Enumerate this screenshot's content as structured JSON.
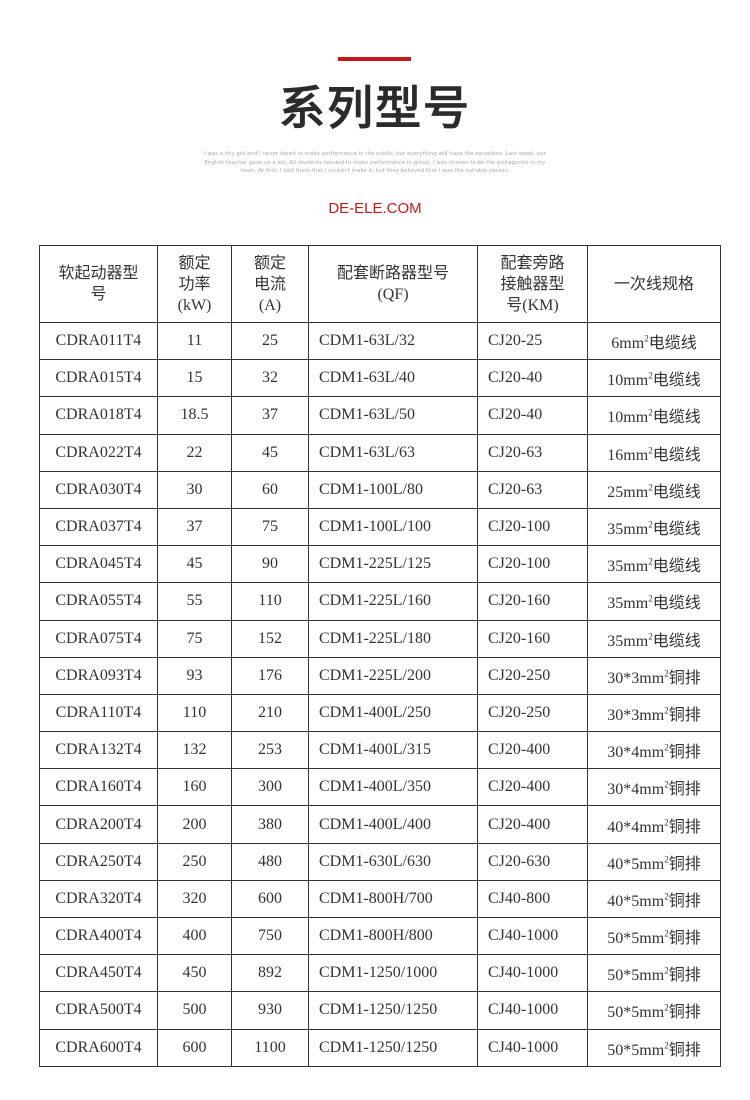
{
  "header": {
    "title": "系列型号",
    "blurb": "I was a shy girl and I never dared to make performance in the public, but everything will have the exception. Last week, our English teacher gave us a job. All students needed to make performance in group. I was chosen to be the protagonist in my team. At first, I told them that I couldn't make it, but they believed that I was the suitable person.",
    "site": "DE-ELE.COM",
    "accent": "#c8161d"
  },
  "table": {
    "columns": [
      "软起动器型号",
      "额定功率(kW)",
      "额定电流(A)",
      "配套断路器型号(QF)",
      "配套旁路接触器型号(KM)",
      "一次线规格"
    ],
    "rows": [
      [
        "CDRA011T4",
        "11",
        "25",
        "CDM1-63L/32",
        "CJ20-25",
        "6mm",
        "电缆线"
      ],
      [
        "CDRA015T4",
        "15",
        "32",
        "CDM1-63L/40",
        "CJ20-40",
        "10mm",
        "电缆线"
      ],
      [
        "CDRA018T4",
        "18.5",
        "37",
        "CDM1-63L/50",
        "CJ20-40",
        "10mm",
        "电缆线"
      ],
      [
        "CDRA022T4",
        "22",
        "45",
        "CDM1-63L/63",
        "CJ20-63",
        "16mm",
        "电缆线"
      ],
      [
        "CDRA030T4",
        "30",
        "60",
        "CDM1-100L/80",
        "CJ20-63",
        "25mm",
        "电缆线"
      ],
      [
        "CDRA037T4",
        "37",
        "75",
        "CDM1-100L/100",
        "CJ20-100",
        "35mm",
        "电缆线"
      ],
      [
        "CDRA045T4",
        "45",
        "90",
        "CDM1-225L/125",
        "CJ20-100",
        "35mm",
        "电缆线"
      ],
      [
        "CDRA055T4",
        "55",
        "110",
        "CDM1-225L/160",
        "CJ20-160",
        "35mm",
        "电缆线"
      ],
      [
        "CDRA075T4",
        "75",
        "152",
        "CDM1-225L/180",
        "CJ20-160",
        "35mm",
        "电缆线"
      ],
      [
        "CDRA093T4",
        "93",
        "176",
        "CDM1-225L/200",
        "CJ20-250",
        "30*3mm",
        "铜排"
      ],
      [
        "CDRA110T4",
        "110",
        "210",
        "CDM1-400L/250",
        "CJ20-250",
        "30*3mm",
        "铜排"
      ],
      [
        "CDRA132T4",
        "132",
        "253",
        "CDM1-400L/315",
        "CJ20-400",
        "30*4mm",
        "铜排"
      ],
      [
        "CDRA160T4",
        "160",
        "300",
        "CDM1-400L/350",
        "CJ20-400",
        "30*4mm",
        "铜排"
      ],
      [
        "CDRA200T4",
        "200",
        "380",
        "CDM1-400L/400",
        "CJ20-400",
        "40*4mm",
        "铜排"
      ],
      [
        "CDRA250T4",
        "250",
        "480",
        "CDM1-630L/630",
        "CJ20-630",
        "40*5mm",
        "铜排"
      ],
      [
        "CDRA320T4",
        "320",
        "600",
        "CDM1-800H/700",
        "CJ40-800",
        "40*5mm",
        "铜排"
      ],
      [
        "CDRA400T4",
        "400",
        "750",
        "CDM1-800H/800",
        "CJ40-1000",
        "50*5mm",
        "铜排"
      ],
      [
        "CDRA450T4",
        "450",
        "892",
        "CDM1-1250/1000",
        "CJ40-1000",
        "50*5mm",
        "铜排"
      ],
      [
        "CDRA500T4",
        "500",
        "930",
        "CDM1-1250/1250",
        "CJ40-1000",
        "50*5mm",
        "铜排"
      ],
      [
        "CDRA600T4",
        "600",
        "1100",
        "CDM1-1250/1250",
        "CJ40-1000",
        "50*5mm",
        "铜排"
      ]
    ],
    "superscript": "2"
  }
}
